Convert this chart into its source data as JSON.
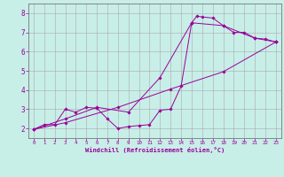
{
  "xlabel": "Windchill (Refroidissement éolien,°C)",
  "bg_color": "#c8eee8",
  "line_color": "#990099",
  "grid_color": "#aaaaaa",
  "xlim": [
    -0.5,
    23.5
  ],
  "ylim": [
    1.5,
    8.5
  ],
  "xticks": [
    0,
    1,
    2,
    3,
    4,
    5,
    6,
    7,
    8,
    9,
    10,
    11,
    12,
    13,
    14,
    15,
    16,
    17,
    18,
    19,
    20,
    21,
    22,
    23
  ],
  "yticks": [
    2,
    3,
    4,
    5,
    6,
    7,
    8
  ],
  "series1": [
    [
      0.0,
      1.95
    ],
    [
      1.0,
      2.2
    ],
    [
      2.0,
      2.2
    ],
    [
      3.0,
      3.0
    ],
    [
      4.0,
      2.85
    ],
    [
      5.0,
      3.1
    ],
    [
      6.0,
      3.05
    ],
    [
      7.0,
      2.5
    ],
    [
      8.0,
      2.0
    ],
    [
      9.0,
      2.1
    ],
    [
      10.0,
      2.15
    ],
    [
      11.0,
      2.2
    ],
    [
      12.0,
      2.95
    ],
    [
      13.0,
      3.0
    ],
    [
      14.0,
      4.2
    ],
    [
      15.0,
      7.5
    ],
    [
      15.5,
      7.85
    ],
    [
      16.0,
      7.8
    ],
    [
      17.0,
      7.75
    ],
    [
      18.0,
      7.35
    ],
    [
      19.0,
      7.0
    ],
    [
      20.0,
      7.0
    ],
    [
      21.0,
      6.7
    ],
    [
      22.0,
      6.65
    ],
    [
      23.0,
      6.5
    ]
  ],
  "series2": [
    [
      0.0,
      1.95
    ],
    [
      3.0,
      2.3
    ],
    [
      8.0,
      3.1
    ],
    [
      13.0,
      4.05
    ],
    [
      18.0,
      4.95
    ],
    [
      23.0,
      6.5
    ]
  ],
  "series3": [
    [
      0.0,
      1.95
    ],
    [
      3.0,
      2.5
    ],
    [
      6.0,
      3.1
    ],
    [
      9.0,
      2.85
    ],
    [
      12.0,
      4.65
    ],
    [
      15.0,
      7.5
    ],
    [
      18.0,
      7.35
    ],
    [
      21.0,
      6.7
    ],
    [
      23.0,
      6.5
    ]
  ]
}
